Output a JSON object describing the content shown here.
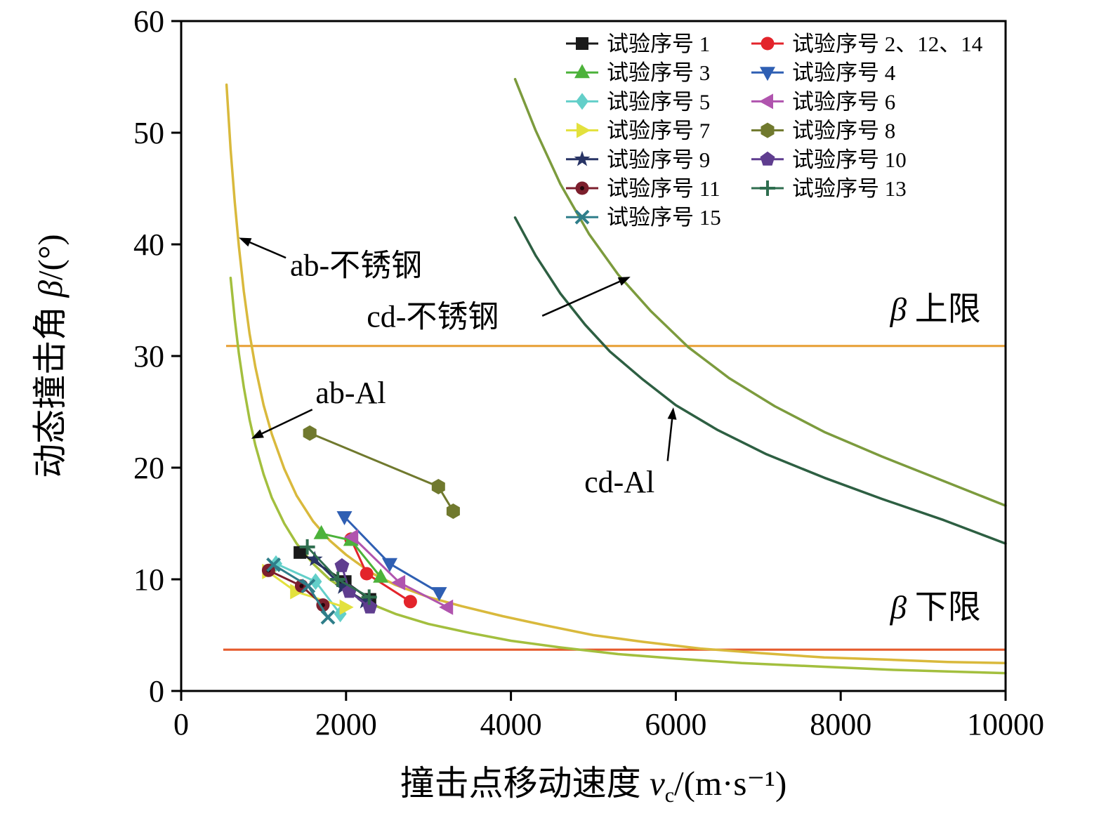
{
  "figure": {
    "background": "#ffffff"
  },
  "chart_data": {
    "type": "line",
    "title": "",
    "xlabel_parts": {
      "prefix": "撞击点移动速度 ",
      "var": "v",
      "sub": "c",
      "suffix": "/(m·s⁻¹)"
    },
    "ylabel_parts": {
      "prefix": "动态撞击角 ",
      "var": "β",
      "suffix": "/(°)"
    },
    "xlim": [
      0,
      10000
    ],
    "ylim": [
      0,
      60
    ],
    "xticks": [
      0,
      2000,
      4000,
      6000,
      8000,
      10000
    ],
    "yticks": [
      0,
      10,
      20,
      30,
      40,
      50,
      60
    ],
    "grid": false,
    "legend_position": "upper-right-inside",
    "boundary_curves": [
      {
        "id": "ab-stainless",
        "name": "ab-不锈钢",
        "color": "#d9b93c",
        "points": [
          [
            550,
            54.3
          ],
          [
            600,
            48.5
          ],
          [
            650,
            43.8
          ],
          [
            700,
            39.8
          ],
          [
            760,
            35.8
          ],
          [
            830,
            32.0
          ],
          [
            900,
            29.0
          ],
          [
            1000,
            25.6
          ],
          [
            1100,
            23.0
          ],
          [
            1250,
            19.9
          ],
          [
            1400,
            17.5
          ],
          [
            1600,
            15.2
          ],
          [
            1800,
            13.5
          ],
          [
            2000,
            12.2
          ],
          [
            2300,
            10.6
          ],
          [
            2600,
            9.5
          ],
          [
            3000,
            8.4
          ],
          [
            3400,
            7.6
          ],
          [
            3900,
            6.7
          ],
          [
            4400,
            5.9
          ],
          [
            5000,
            5.0
          ],
          [
            5600,
            4.4
          ],
          [
            6300,
            3.8
          ],
          [
            7000,
            3.4
          ],
          [
            7800,
            3.0
          ],
          [
            8600,
            2.8
          ],
          [
            9300,
            2.6
          ],
          [
            10000,
            2.5
          ]
        ]
      },
      {
        "id": "ab-al",
        "name": "ab-Al",
        "color": "#a3bf3e",
        "points": [
          [
            600,
            37.0
          ],
          [
            650,
            33.3
          ],
          [
            700,
            30.2
          ],
          [
            760,
            27.2
          ],
          [
            830,
            24.3
          ],
          [
            900,
            22.0
          ],
          [
            1000,
            19.4
          ],
          [
            1100,
            17.3
          ],
          [
            1250,
            15.0
          ],
          [
            1400,
            13.2
          ],
          [
            1600,
            11.4
          ],
          [
            1800,
            10.0
          ],
          [
            2000,
            9.0
          ],
          [
            2300,
            7.8
          ],
          [
            2600,
            6.9
          ],
          [
            3000,
            6.0
          ],
          [
            3500,
            5.2
          ],
          [
            4000,
            4.5
          ],
          [
            4600,
            3.9
          ],
          [
            5300,
            3.3
          ],
          [
            6000,
            2.9
          ],
          [
            6800,
            2.5
          ],
          [
            7700,
            2.2
          ],
          [
            8600,
            1.9
          ],
          [
            9300,
            1.75
          ],
          [
            10000,
            1.6
          ]
        ]
      },
      {
        "id": "cd-stainless",
        "name": "cd-不锈钢",
        "color": "#7c9b3d",
        "points": [
          [
            4050,
            54.8
          ],
          [
            4300,
            50.2
          ],
          [
            4600,
            45.4
          ],
          [
            4950,
            40.9
          ],
          [
            5300,
            37.3
          ],
          [
            5700,
            34.0
          ],
          [
            6150,
            30.8
          ],
          [
            6650,
            28.0
          ],
          [
            7200,
            25.5
          ],
          [
            7800,
            23.2
          ],
          [
            8500,
            21.0
          ],
          [
            9250,
            18.8
          ],
          [
            10000,
            16.6
          ]
        ]
      },
      {
        "id": "cd-al",
        "name": "cd-Al",
        "color": "#2d5f42",
        "points": [
          [
            4050,
            42.4
          ],
          [
            4300,
            39.0
          ],
          [
            4600,
            35.6
          ],
          [
            4900,
            32.8
          ],
          [
            5200,
            30.4
          ],
          [
            5600,
            27.9
          ],
          [
            6000,
            25.6
          ],
          [
            6500,
            23.4
          ],
          [
            7100,
            21.2
          ],
          [
            7800,
            19.1
          ],
          [
            8500,
            17.2
          ],
          [
            9250,
            15.3
          ],
          [
            10000,
            13.2
          ]
        ]
      }
    ],
    "hlines": [
      {
        "id": "beta-upper",
        "label": "β 上限",
        "y": 30.9,
        "x_start": 545,
        "x_end": 10000,
        "color": "#e8a23b"
      },
      {
        "id": "beta-lower",
        "label": "β 下限",
        "y": 3.7,
        "x_start": 510,
        "x_end": 10000,
        "color": "#e55b2d"
      }
    ],
    "series": [
      {
        "id": "1",
        "label": "试验序号 1",
        "color": "#1a1a1a",
        "marker": "square",
        "points": [
          [
            1440,
            12.4
          ],
          [
            1990,
            9.8
          ],
          [
            2290,
            8.2
          ]
        ]
      },
      {
        "id": "2-12-14",
        "label": "试验序号 2、12、14",
        "color": "#e3242b",
        "marker": "circle",
        "points": [
          [
            2060,
            13.6
          ],
          [
            2250,
            10.5
          ],
          [
            2780,
            8.0
          ]
        ]
      },
      {
        "id": "3",
        "label": "试验序号 3",
        "color": "#4cb23a",
        "marker": "triangle-up",
        "points": [
          [
            1700,
            14.1
          ],
          [
            2060,
            13.5
          ],
          [
            2420,
            10.2
          ]
        ]
      },
      {
        "id": "4",
        "label": "试验序号 4",
        "color": "#2f5fb3",
        "marker": "triangle-down",
        "points": [
          [
            1980,
            15.6
          ],
          [
            2530,
            11.4
          ],
          [
            3130,
            8.8
          ]
        ]
      },
      {
        "id": "5",
        "label": "试验序号 5",
        "color": "#63cfc9",
        "marker": "diamond",
        "points": [
          [
            1150,
            11.4
          ],
          [
            1630,
            9.8
          ],
          [
            1930,
            6.9
          ]
        ]
      },
      {
        "id": "6",
        "label": "试验序号 6",
        "color": "#b054ae",
        "marker": "triangle-left",
        "points": [
          [
            2080,
            13.8
          ],
          [
            2650,
            9.7
          ],
          [
            3230,
            7.5
          ]
        ]
      },
      {
        "id": "7",
        "label": "试验序号 7",
        "color": "#e3e13d",
        "marker": "triangle-right",
        "points": [
          [
            1050,
            10.7
          ],
          [
            1390,
            8.9
          ],
          [
            1990,
            7.5
          ]
        ]
      },
      {
        "id": "8",
        "label": "试验序号 8",
        "color": "#70792e",
        "marker": "hexagon",
        "points": [
          [
            1560,
            23.1
          ],
          [
            3120,
            18.3
          ],
          [
            3300,
            16.1
          ]
        ]
      },
      {
        "id": "9",
        "label": "试验序号 9",
        "color": "#283465",
        "marker": "star",
        "points": [
          [
            1620,
            11.8
          ],
          [
            1960,
            9.3
          ],
          [
            2230,
            8.0
          ]
        ]
      },
      {
        "id": "10",
        "label": "试验序号 10",
        "color": "#5f3d8f",
        "marker": "pentagon",
        "points": [
          [
            1950,
            11.2
          ],
          [
            2040,
            8.9
          ],
          [
            2290,
            7.5
          ]
        ]
      },
      {
        "id": "11",
        "label": "试验序号 11",
        "color": "#7c1f2d",
        "marker": "circle-dot",
        "points": [
          [
            1060,
            10.8
          ],
          [
            1460,
            9.4
          ],
          [
            1720,
            7.7
          ]
        ]
      },
      {
        "id": "13",
        "label": "试验序号 13",
        "color": "#2f6e4f",
        "marker": "plus",
        "points": [
          [
            1530,
            12.9
          ],
          [
            1900,
            10.0
          ],
          [
            2280,
            8.4
          ]
        ]
      },
      {
        "id": "15",
        "label": "试验序号 15",
        "color": "#2f7e8a",
        "marker": "x",
        "points": [
          [
            1120,
            11.3
          ],
          [
            1540,
            9.4
          ],
          [
            1780,
            6.6
          ]
        ]
      }
    ],
    "legend_columns": [
      [
        0,
        2,
        4,
        6,
        8,
        10,
        12
      ],
      [
        1,
        3,
        5,
        7,
        9,
        11
      ]
    ],
    "annotations": [
      {
        "text": "ab-不锈钢",
        "text_xy": [
          1320,
          37.2
        ],
        "arrow_tail": [
          1270,
          38.8
        ],
        "arrow_head": [
          700,
          40.6
        ]
      },
      {
        "text": "cd-不锈钢",
        "text_xy": [
          2250,
          32.6
        ],
        "arrow_tail": [
          4380,
          33.6
        ],
        "arrow_head": [
          5450,
          37.1
        ]
      },
      {
        "text": "ab-Al",
        "text_xy": [
          1630,
          25.8
        ],
        "arrow_tail": [
          1590,
          25.2
        ],
        "arrow_head": [
          850,
          22.6
        ]
      },
      {
        "text": "cd-Al",
        "text_xy": [
          4890,
          17.8
        ],
        "arrow_tail": [
          5900,
          20.6
        ],
        "arrow_head": [
          5970,
          25.4
        ]
      }
    ],
    "limit_texts": [
      {
        "var": "β",
        "rest": " 上限",
        "xy": [
          8600,
          33.2
        ]
      },
      {
        "var": "β",
        "rest": " 下限",
        "xy": [
          8600,
          6.5
        ]
      }
    ]
  }
}
